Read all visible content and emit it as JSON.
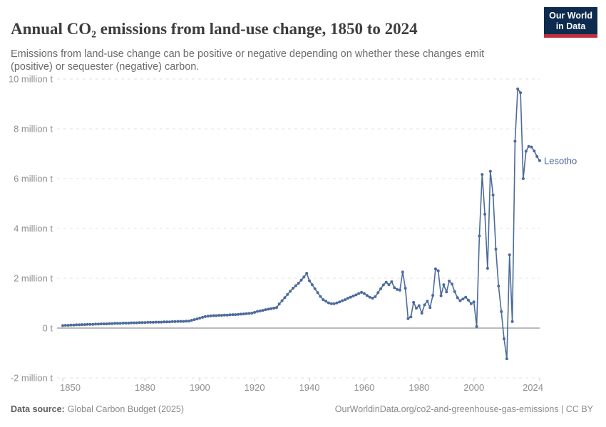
{
  "header": {
    "title": "Annual CO₂ emissions from land-use change, 1850 to 2024",
    "subtitle": "Emissions from land-use change can be positive or negative depending on whether these changes emit (positive) or sequester (negative) carbon.",
    "logo": {
      "line1": "Our World",
      "line2": "in Data",
      "bg_color": "#0d2b4e",
      "stripe_color": "#bf2e3e"
    }
  },
  "footer": {
    "datasource_label": "Data source:",
    "datasource_value": "Global Carbon Budget (2025)",
    "link_text": "OurWorldinData.org/co2-and-greenhouse-gas-emissions | CC BY"
  },
  "chart_data": {
    "type": "line",
    "title": "Annual CO₂ emissions from land-use change, 1850 to 2024",
    "entity": "Lesotho",
    "unit": "million t",
    "xlim": [
      1850,
      2024
    ],
    "ylim": [
      -2,
      10
    ],
    "grid": "horizontal-dashed",
    "markers": true,
    "x_ticks": [
      1850,
      1880,
      1900,
      1920,
      1940,
      1960,
      1980,
      2000,
      2024
    ],
    "y_ticks": [
      -2,
      0,
      2,
      4,
      6,
      8,
      10
    ],
    "y_tick_labels": [
      "-2 million t",
      "0 t",
      "2 million t",
      "4 million t",
      "6 million t",
      "8 million t",
      "10 million t"
    ],
    "axis_text_color": "#8f8f8f",
    "gridline_color": "#e0e0e0",
    "zeroline_color": "#a3a3a3",
    "series": [
      {
        "name": "Lesotho",
        "color": "#4c6a9c",
        "x_start": 1850,
        "values": [
          0.1,
          0.11,
          0.11,
          0.12,
          0.12,
          0.13,
          0.13,
          0.14,
          0.14,
          0.15,
          0.15,
          0.15,
          0.16,
          0.16,
          0.17,
          0.17,
          0.17,
          0.18,
          0.18,
          0.19,
          0.19,
          0.19,
          0.2,
          0.2,
          0.2,
          0.21,
          0.21,
          0.21,
          0.22,
          0.22,
          0.22,
          0.23,
          0.23,
          0.23,
          0.24,
          0.24,
          0.24,
          0.25,
          0.25,
          0.25,
          0.26,
          0.26,
          0.27,
          0.27,
          0.27,
          0.28,
          0.28,
          0.31,
          0.34,
          0.37,
          0.4,
          0.43,
          0.46,
          0.48,
          0.49,
          0.5,
          0.5,
          0.51,
          0.51,
          0.52,
          0.52,
          0.53,
          0.54,
          0.54,
          0.55,
          0.56,
          0.57,
          0.58,
          0.59,
          0.6,
          0.63,
          0.67,
          0.69,
          0.71,
          0.74,
          0.76,
          0.78,
          0.8,
          0.82,
          0.97,
          1.1,
          1.22,
          1.35,
          1.48,
          1.6,
          1.7,
          1.8,
          1.92,
          2.05,
          2.2,
          1.9,
          1.74,
          1.58,
          1.42,
          1.27,
          1.14,
          1.08,
          1.01,
          0.98,
          0.98,
          1.01,
          1.05,
          1.1,
          1.14,
          1.2,
          1.24,
          1.29,
          1.33,
          1.39,
          1.43,
          1.39,
          1.31,
          1.24,
          1.2,
          1.26,
          1.42,
          1.58,
          1.73,
          1.84,
          1.74,
          1.86,
          1.62,
          1.55,
          1.52,
          2.25,
          1.6,
          0.38,
          0.45,
          1.03,
          0.8,
          0.9,
          0.6,
          0.93,
          1.08,
          0.82,
          1.31,
          2.38,
          2.3,
          1.3,
          1.74,
          1.45,
          1.89,
          1.77,
          1.46,
          1.22,
          1.1,
          1.17,
          1.24,
          1.12,
          0.98,
          1.05,
          0.06,
          3.7,
          6.17,
          4.57,
          2.4,
          6.29,
          5.34,
          3.17,
          1.69,
          0.66,
          -0.43,
          -1.23,
          2.94,
          0.26,
          7.5,
          9.6,
          9.45,
          6.0,
          7.1,
          7.29,
          7.27,
          7.11,
          6.89,
          6.72
        ]
      }
    ]
  }
}
